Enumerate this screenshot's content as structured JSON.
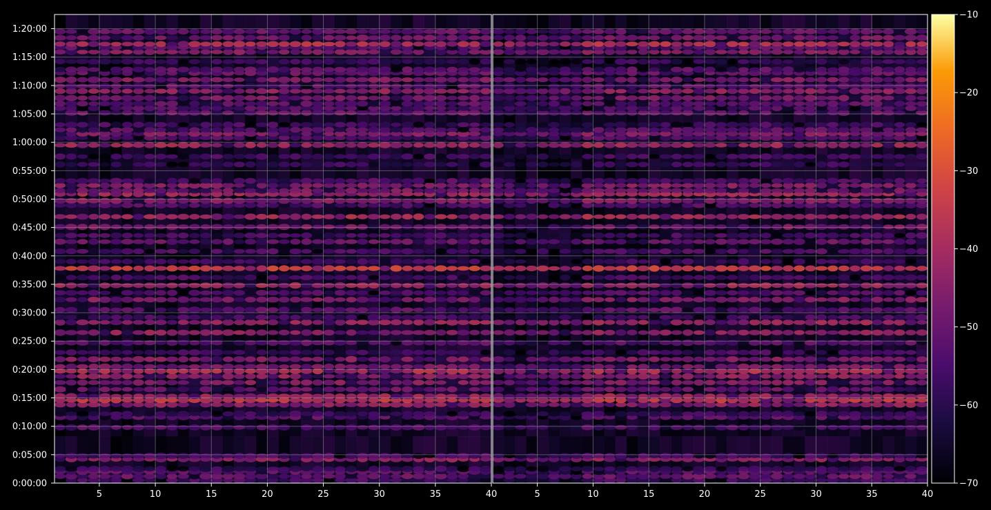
{
  "chart_data": {
    "type": "heatmap",
    "title": "",
    "xlabel": "",
    "ylabel": "",
    "colormap": "inferno",
    "background": "#000000",
    "grid": true,
    "panels": [
      {
        "name": "",
        "xlim": [
          1,
          40
        ],
        "xticks": [
          5,
          10,
          15,
          20,
          25,
          30,
          35,
          40
        ]
      },
      {
        "name": "",
        "xlim": [
          1,
          40
        ],
        "xticks": [
          5,
          10,
          15,
          20,
          25,
          30,
          35,
          40
        ]
      }
    ],
    "y_ticks": [
      "0:00:00",
      "0:05:00",
      "0:10:00",
      "0:15:00",
      "0:20:00",
      "0:25:00",
      "0:30:00",
      "0:35:00",
      "0:40:00",
      "0:45:00",
      "0:50:00",
      "0:55:00",
      "1:00:00",
      "1:05:00",
      "1:10:00",
      "1:15:00",
      "1:20:00"
    ],
    "ylim_minutes": [
      0,
      82.5
    ],
    "colorbar": {
      "range": [
        -70,
        -10
      ],
      "ticks": [
        "−70",
        "−60",
        "−50",
        "−40",
        "−30",
        "−20",
        "−10"
      ]
    },
    "bands": [
      {
        "t": 0.5,
        "level": -56
      },
      {
        "t": 1.2,
        "level": -50
      },
      {
        "t": 2.0,
        "level": -52
      },
      {
        "t": 2.5,
        "level": -58
      },
      {
        "t": 4.2,
        "level": -44
      },
      {
        "t": 4.8,
        "level": -55
      },
      {
        "t": 9.8,
        "level": -54
      },
      {
        "t": 11.6,
        "level": -52
      },
      {
        "t": 12.2,
        "level": -58
      },
      {
        "t": 13.8,
        "level": -44
      },
      {
        "t": 14.6,
        "level": -36
      },
      {
        "t": 15.3,
        "level": -42
      },
      {
        "t": 16.5,
        "level": -50
      },
      {
        "t": 17.7,
        "level": -46
      },
      {
        "t": 18.8,
        "level": -44
      },
      {
        "t": 19.7,
        "level": -38
      },
      {
        "t": 20.5,
        "level": -48
      },
      {
        "t": 21.8,
        "level": -46
      },
      {
        "t": 23.0,
        "level": -56
      },
      {
        "t": 24.7,
        "level": -52
      },
      {
        "t": 26.5,
        "level": -44
      },
      {
        "t": 28.3,
        "level": -42
      },
      {
        "t": 29.2,
        "level": -56
      },
      {
        "t": 30.5,
        "level": -52
      },
      {
        "t": 32.3,
        "level": -46
      },
      {
        "t": 33.5,
        "level": -54
      },
      {
        "t": 34.8,
        "level": -42
      },
      {
        "t": 36.2,
        "level": -56
      },
      {
        "t": 37.8,
        "level": -34
      },
      {
        "t": 39.0,
        "level": -58
      },
      {
        "t": 40.8,
        "level": -54
      },
      {
        "t": 42.5,
        "level": -50
      },
      {
        "t": 43.6,
        "level": -56
      },
      {
        "t": 45.1,
        "level": -48
      },
      {
        "t": 46.9,
        "level": -40
      },
      {
        "t": 48.9,
        "level": -54
      },
      {
        "t": 49.7,
        "level": -46
      },
      {
        "t": 50.9,
        "level": -40
      },
      {
        "t": 51.5,
        "level": -48
      },
      {
        "t": 52.4,
        "level": -46
      },
      {
        "t": 53.2,
        "level": -54
      },
      {
        "t": 56.1,
        "level": -58
      },
      {
        "t": 57.5,
        "level": -56
      },
      {
        "t": 59.5,
        "level": -42
      },
      {
        "t": 60.8,
        "level": -54
      },
      {
        "t": 61.5,
        "level": -46
      },
      {
        "t": 62.2,
        "level": -52
      },
      {
        "t": 63.1,
        "level": -56
      },
      {
        "t": 65.2,
        "level": -50
      },
      {
        "t": 66.0,
        "level": -54
      },
      {
        "t": 66.8,
        "level": -52
      },
      {
        "t": 67.8,
        "level": -48
      },
      {
        "t": 69.0,
        "level": -44
      },
      {
        "t": 69.9,
        "level": -52
      },
      {
        "t": 71.0,
        "level": -46
      },
      {
        "t": 72.2,
        "level": -50
      },
      {
        "t": 72.8,
        "level": -52
      },
      {
        "t": 74.2,
        "level": -58
      },
      {
        "t": 75.9,
        "level": -46
      },
      {
        "t": 76.7,
        "level": -52
      },
      {
        "t": 77.3,
        "level": -38
      },
      {
        "t": 78.4,
        "level": -48
      },
      {
        "t": 79.5,
        "level": -50
      }
    ]
  }
}
